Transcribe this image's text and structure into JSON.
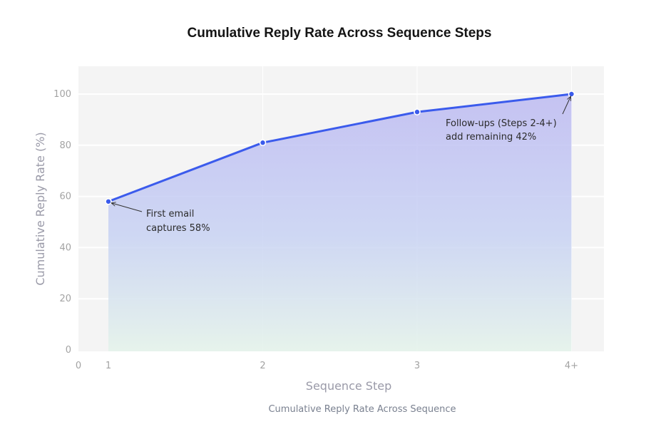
{
  "chart_data": {
    "type": "area",
    "title": "Cumulative Reply Rate Across Sequence Steps",
    "xlabel": "Sequence Step",
    "ylabel": "Cumulative Reply Rate (%)",
    "caption": "Cumulative Reply Rate Across Sequence",
    "x_ticks": [
      "0",
      "1",
      "2",
      "3",
      "4+"
    ],
    "categories": [
      "1",
      "2",
      "3",
      "4+"
    ],
    "series": [
      {
        "name": "Cumulative Reply Rate",
        "values": [
          58,
          81,
          93,
          100
        ]
      }
    ],
    "y_ticks": [
      0,
      20,
      40,
      60,
      80,
      100
    ],
    "ylim": [
      0,
      110
    ],
    "xlim": [
      0,
      4.2
    ],
    "grid": true,
    "line_color": "#3b5bec",
    "annotations": [
      {
        "text_lines": [
          "First email",
          "captures 58%"
        ],
        "target": {
          "x": "1",
          "y": 58
        }
      },
      {
        "text_lines": [
          "Follow-ups (Steps 2-4+)",
          "add remaining 42%"
        ],
        "target": {
          "x": "4+",
          "y": 100
        }
      }
    ]
  }
}
